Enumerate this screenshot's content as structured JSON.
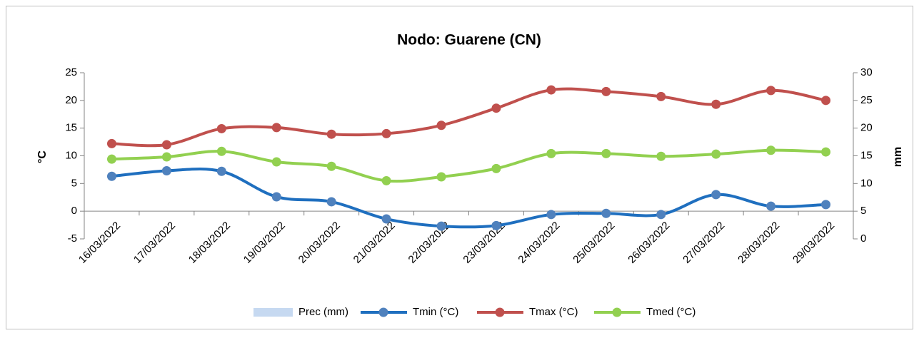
{
  "chart_data": {
    "type": "line",
    "title": "Nodo: Guarene (CN)",
    "categories": [
      "16/03/2022",
      "17/03/2022",
      "18/03/2022",
      "19/03/2022",
      "20/03/2022",
      "21/03/2022",
      "22/03/2022",
      "23/03/2022",
      "24/03/2022",
      "25/03/2022",
      "26/03/2022",
      "27/03/2022",
      "28/03/2022",
      "29/03/2022"
    ],
    "y_label": "°C",
    "y2_label": "mm",
    "ylim": [
      -5,
      25
    ],
    "yticks": [
      -5,
      0,
      5,
      10,
      15,
      20,
      25
    ],
    "y2lim": [
      0,
      30
    ],
    "y2ticks": [
      0,
      5,
      10,
      15,
      20,
      25,
      30
    ],
    "series": [
      {
        "name": "Prec (mm)",
        "type": "bar",
        "axis": "y2",
        "color": "#c6d9f1",
        "values": [
          0,
          0,
          0,
          0,
          0,
          0,
          0,
          0,
          0,
          0,
          0,
          0,
          0,
          0
        ]
      },
      {
        "name": "Tmin (°C)",
        "color": "#1f6fbf",
        "marker_color": "#4f81bd",
        "values": [
          6.3,
          7.3,
          7.2,
          2.6,
          1.7,
          -1.4,
          -2.7,
          -2.6,
          -0.6,
          -0.4,
          -0.6,
          3.0,
          0.9,
          1.2
        ]
      },
      {
        "name": "Tmax (°C)",
        "color": "#c0504d",
        "marker_color": "#c0504d",
        "values": [
          12.2,
          12.0,
          14.9,
          15.1,
          13.9,
          14.0,
          15.5,
          18.6,
          21.9,
          21.6,
          20.7,
          19.3,
          21.8,
          20.0
        ]
      },
      {
        "name": "Tmed (°C)",
        "color": "#92d050",
        "marker_color": "#92d050",
        "values": [
          9.4,
          9.8,
          10.8,
          8.9,
          8.1,
          5.5,
          6.2,
          7.7,
          10.4,
          10.4,
          9.9,
          10.3,
          11.0,
          10.7
        ]
      }
    ],
    "grid": false,
    "legend": "bottom"
  }
}
